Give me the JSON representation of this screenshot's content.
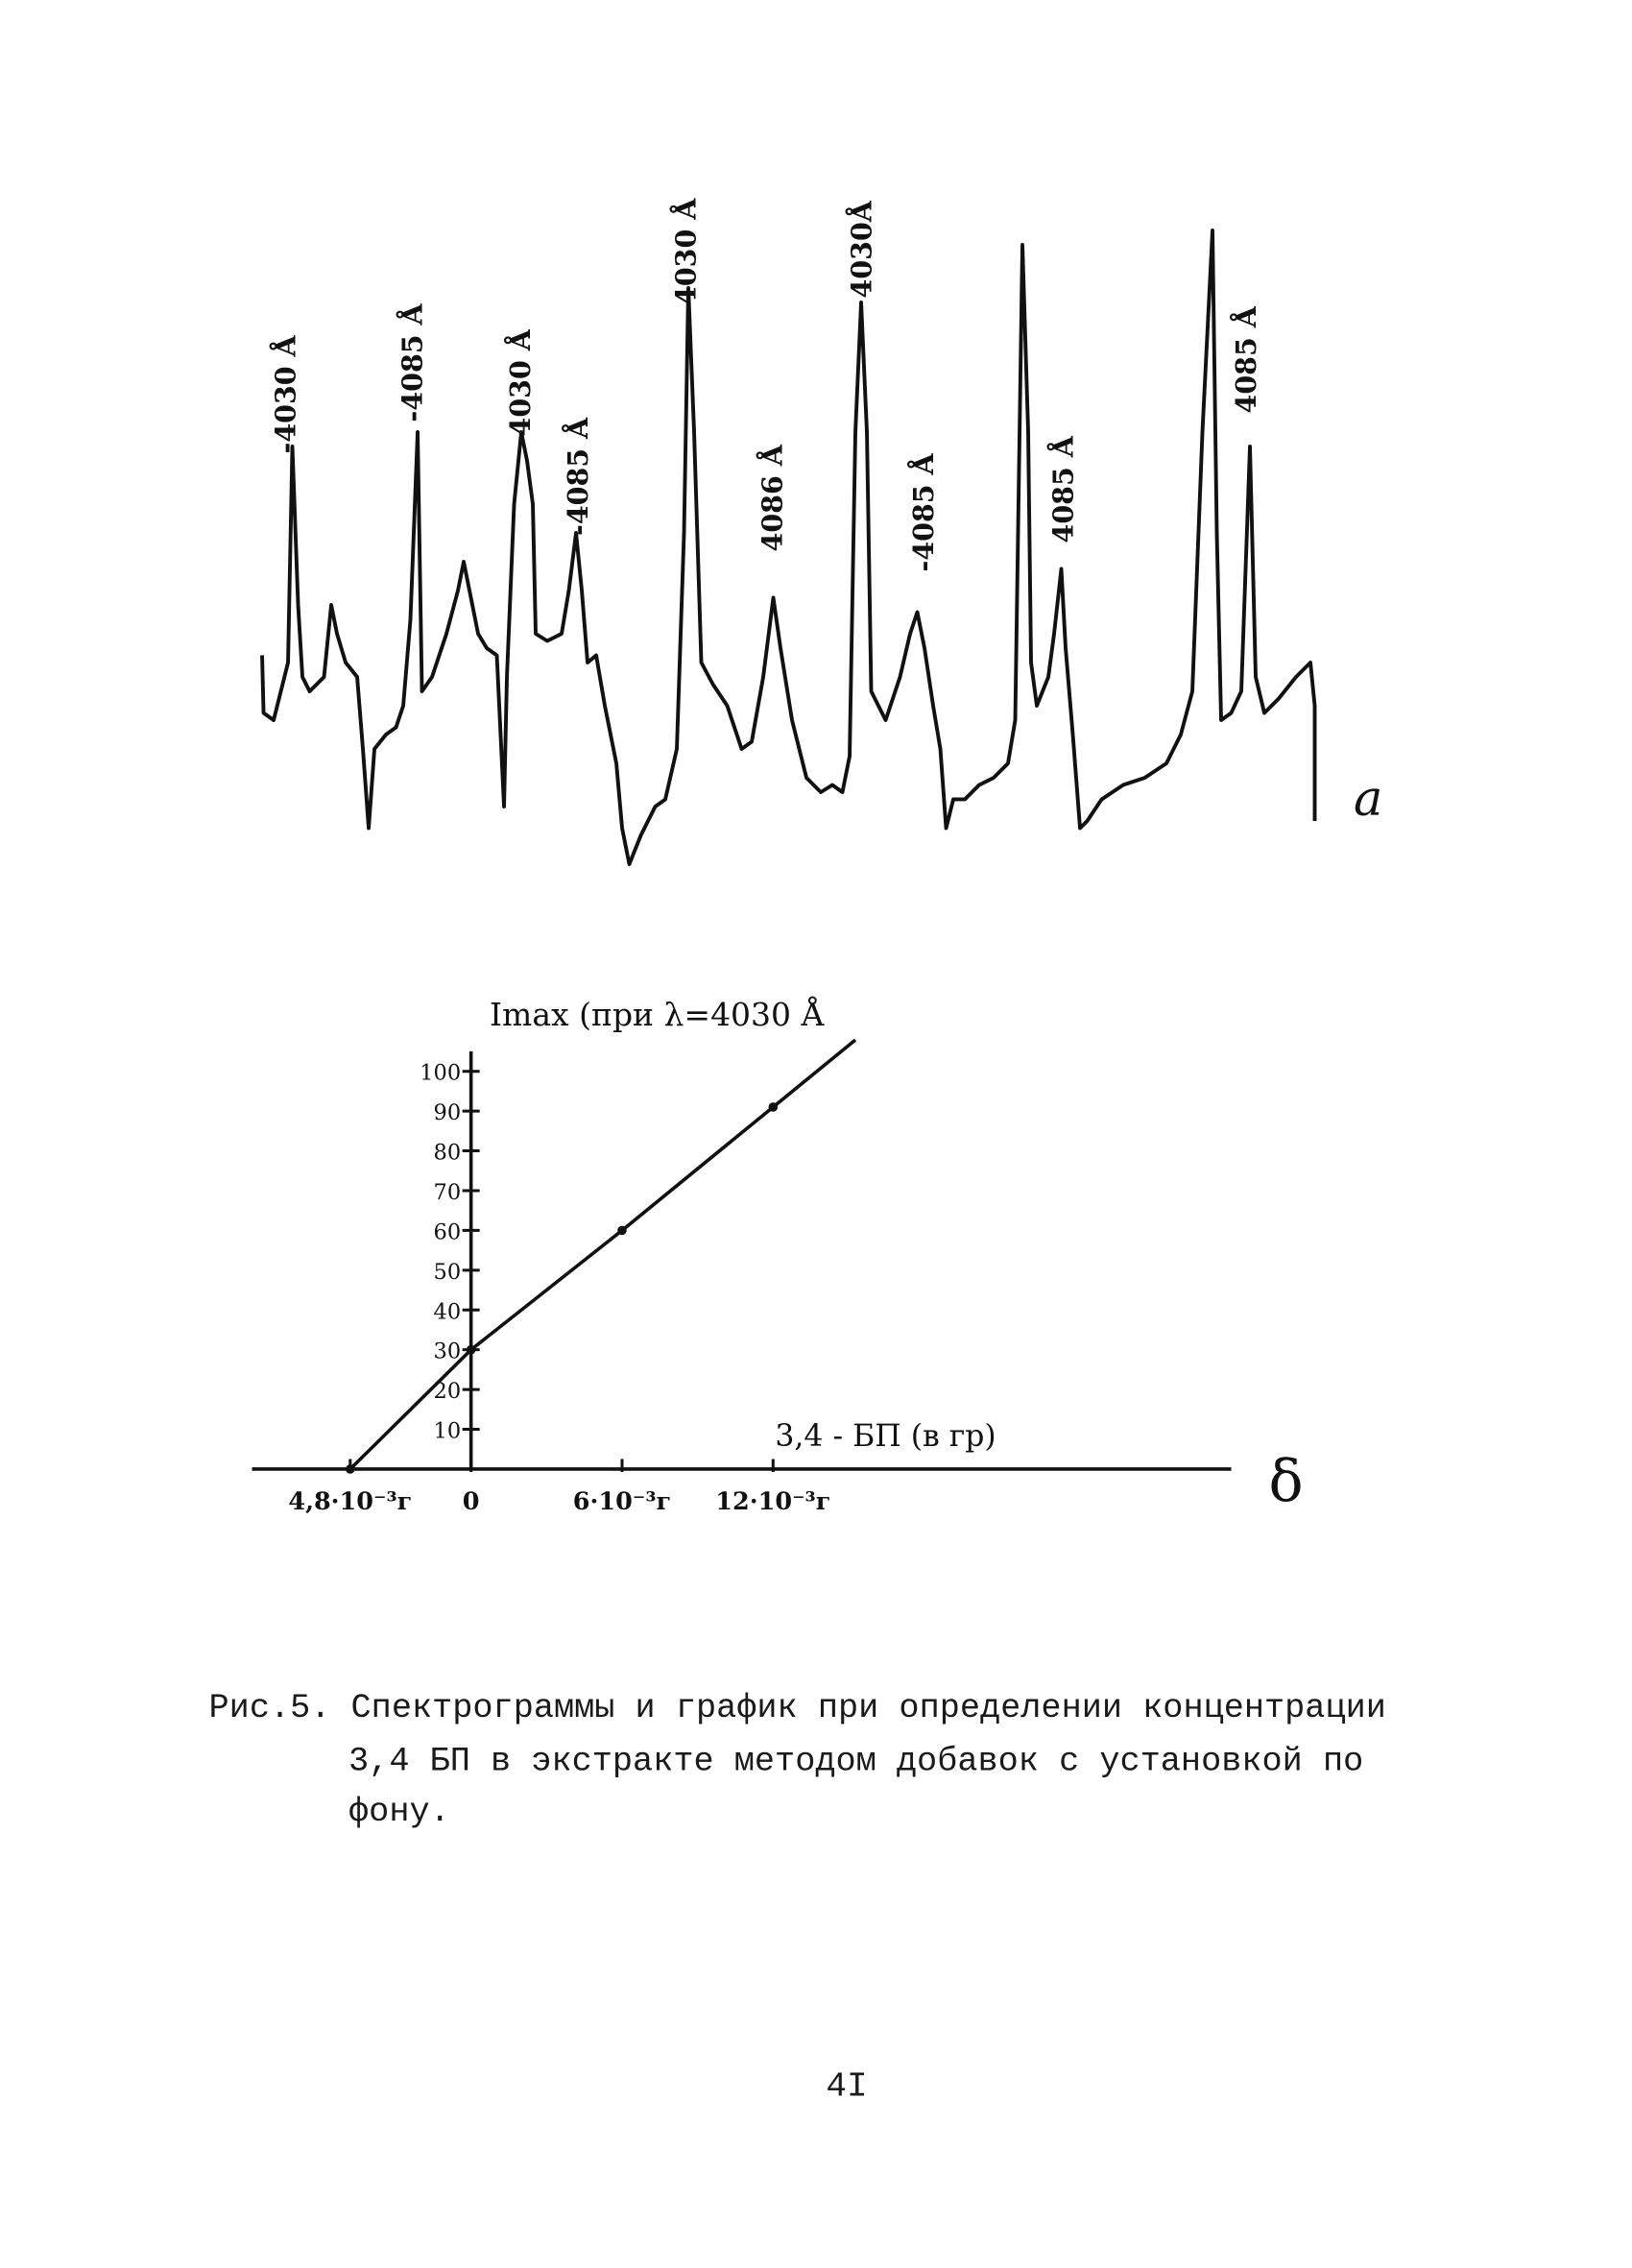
{
  "spectrogram": {
    "peak_labels": [
      "-4030 Å",
      "-4085 Å",
      "4030 Å",
      "-4085 Å",
      "4030 Å",
      "4086 Å",
      "4030Å",
      "-4085 Å",
      "4085 Å",
      "4085 Å"
    ],
    "panel_label": "a"
  },
  "chart_data": {
    "type": "line",
    "title": "Imax (при λ=4030 Å",
    "x_label": "3,4 - БП (в гр)",
    "x_symbol": "δ",
    "x": [
      -4.8,
      0,
      6,
      12
    ],
    "series": [
      {
        "color": "#111111",
        "values": [
          0,
          30,
          60,
          91
        ]
      }
    ],
    "xlim": [
      -8.7,
      30.2
    ],
    "ylim": [
      0,
      105
    ],
    "xticks": [
      {
        "value": -4.8,
        "label": "4,8·10⁻³г"
      },
      0,
      {
        "value": 6,
        "label": "6·10⁻³г"
      },
      {
        "value": 12,
        "label": "12·10⁻³г"
      }
    ],
    "yticks": [
      10,
      20,
      30,
      40,
      50,
      60,
      70,
      80,
      90,
      100
    ]
  },
  "caption": {
    "lines": [
      "Рис.5. Спектрограммы и график при определении концентрации",
      "3,4 БП в экстракте методом добавок с установкой по",
      "фону."
    ]
  },
  "page_number": "4I"
}
